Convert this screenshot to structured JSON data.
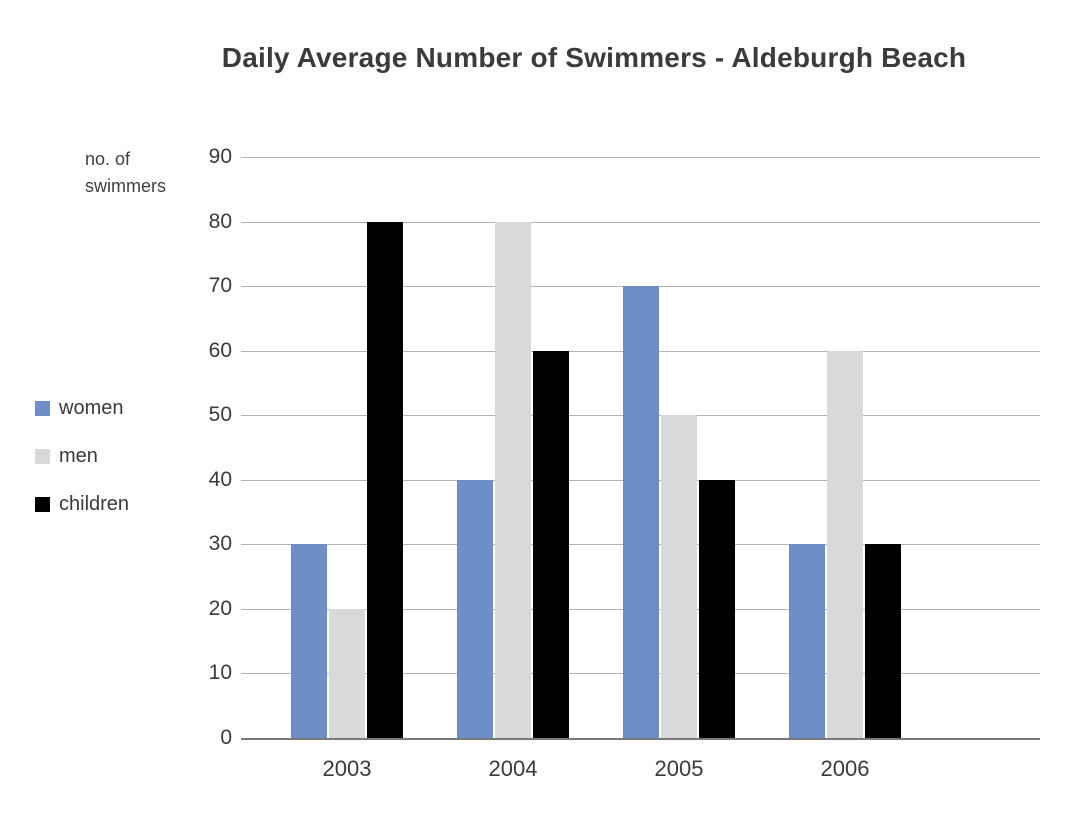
{
  "title": "Daily Average Number of Swimmers - Aldeburgh Beach",
  "y_axis_label_line1": "no. of",
  "y_axis_label_line2": "swimmers",
  "legend": [
    {
      "label": "women",
      "color": "#6d8ec6"
    },
    {
      "label": "men",
      "color": "#d9d9d9"
    },
    {
      "label": "children",
      "color": "#000000"
    }
  ],
  "chart_data": {
    "type": "bar",
    "title": "Daily Average Number of Swimmers - Aldeburgh Beach",
    "categories": [
      "2003",
      "2004",
      "2005",
      "2006"
    ],
    "series": [
      {
        "name": "women",
        "color": "#6d8ec6",
        "values": [
          30,
          40,
          70,
          30
        ]
      },
      {
        "name": "men",
        "color": "#d9d9d9",
        "values": [
          20,
          80,
          50,
          60
        ]
      },
      {
        "name": "children",
        "color": "#000000",
        "values": [
          80,
          60,
          40,
          30
        ]
      }
    ],
    "xlabel": "",
    "ylabel": "no. of swimmers",
    "ylim": [
      0,
      90
    ],
    "ytick_step": 10,
    "grid": true,
    "legend_position": "left"
  }
}
